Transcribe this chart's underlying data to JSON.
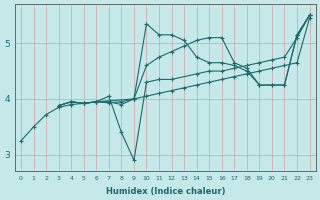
{
  "xlabel": "Humidex (Indice chaleur)",
  "bg_color": "#c5e8e8",
  "line_color": "#1a6b6b",
  "xlim": [
    -0.5,
    23.5
  ],
  "ylim": [
    2.7,
    5.7
  ],
  "xticks": [
    0,
    1,
    2,
    3,
    4,
    5,
    6,
    7,
    8,
    9,
    10,
    11,
    12,
    13,
    14,
    15,
    16,
    17,
    18,
    19,
    20,
    21,
    22,
    23
  ],
  "yticks": [
    3,
    4,
    5
  ],
  "line1_x": [
    0,
    1,
    2,
    3,
    4,
    5,
    6,
    7,
    8,
    9,
    10,
    11,
    12,
    13,
    14,
    15,
    16,
    17,
    18,
    19,
    20,
    21,
    22,
    23
  ],
  "line1_y": [
    3.25,
    3.5,
    3.72,
    3.85,
    3.9,
    3.92,
    3.95,
    3.93,
    3.95,
    4.0,
    4.05,
    4.1,
    4.15,
    4.2,
    4.25,
    4.3,
    4.35,
    4.4,
    4.45,
    4.5,
    4.55,
    4.6,
    4.65,
    5.45
  ],
  "line2_x": [
    3,
    4,
    5,
    6,
    7,
    8,
    9,
    10,
    11,
    12,
    13,
    14,
    15,
    16,
    17,
    18,
    19,
    20,
    21,
    22,
    23
  ],
  "line2_y": [
    3.88,
    3.95,
    3.92,
    3.95,
    3.95,
    3.9,
    4.0,
    5.35,
    5.15,
    5.15,
    5.05,
    4.75,
    4.65,
    4.65,
    4.6,
    4.5,
    4.25,
    4.25,
    4.25,
    5.15,
    5.5
  ],
  "line3_x": [
    3,
    4,
    5,
    6,
    7,
    8,
    9,
    10,
    11,
    12,
    14,
    15,
    16,
    17,
    18,
    19,
    20,
    21,
    22,
    23
  ],
  "line3_y": [
    3.88,
    3.95,
    3.92,
    3.95,
    4.05,
    3.4,
    2.9,
    4.3,
    4.35,
    4.35,
    4.45,
    4.5,
    4.5,
    4.55,
    4.6,
    4.65,
    4.7,
    4.75,
    5.1,
    5.5
  ],
  "line4_x": [
    3,
    4,
    5,
    6,
    9,
    10,
    11,
    12,
    13,
    14,
    15,
    16,
    17,
    18,
    19,
    20,
    21,
    22,
    23
  ],
  "line4_y": [
    3.88,
    3.95,
    3.92,
    3.95,
    4.0,
    4.6,
    4.75,
    4.85,
    4.95,
    5.05,
    5.1,
    5.1,
    4.65,
    4.55,
    4.25,
    4.25,
    4.25,
    5.15,
    5.5
  ]
}
